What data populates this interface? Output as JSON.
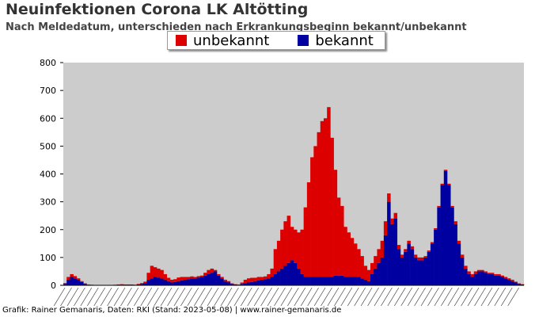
{
  "header": {
    "title": "Neuinfektionen Corona LK Altötting",
    "subtitle": "Nach Meldedatum, unterschieden nach Erkrankungsbeginn bekannt/unbekannt"
  },
  "footer": {
    "credit": "Grafik: Rainer Gemanaris, Daten: RKI (Stand: 2023-05-08) | www.rainer-gemanaris.de"
  },
  "chart_data": {
    "type": "bar",
    "stacked": true,
    "title": "Neuinfektionen Corona LK Altötting",
    "subtitle": "Nach Meldedatum, unterschieden nach Erkrankungsbeginn bekannt/unbekannt",
    "xlabel": "",
    "ylabel": "",
    "ylim": [
      0,
      800
    ],
    "yticks": [
      0,
      100,
      200,
      300,
      400,
      500,
      600,
      700,
      800
    ],
    "grid": false,
    "legend_position": "top-center",
    "x_tick_labels_legible": false,
    "series": [
      {
        "name": "bekannt",
        "color": "#0000a0",
        "values": [
          5,
          20,
          30,
          25,
          20,
          12,
          5,
          2,
          1,
          0,
          0,
          0,
          0,
          0,
          0,
          0,
          0,
          0,
          0,
          0,
          0,
          0,
          3,
          5,
          8,
          20,
          25,
          30,
          28,
          25,
          20,
          15,
          10,
          12,
          15,
          18,
          20,
          22,
          25,
          25,
          28,
          30,
          35,
          40,
          45,
          50,
          35,
          25,
          15,
          10,
          5,
          3,
          2,
          5,
          8,
          10,
          12,
          15,
          18,
          20,
          22,
          25,
          30,
          40,
          50,
          60,
          70,
          80,
          90,
          80,
          60,
          40,
          30,
          30,
          30,
          30,
          30,
          30,
          30,
          30,
          30,
          35,
          35,
          35,
          30,
          30,
          30,
          30,
          30,
          25,
          20,
          15,
          40,
          60,
          80,
          100,
          180,
          300,
          220,
          240,
          130,
          100,
          120,
          150,
          130,
          100,
          90,
          90,
          100,
          120,
          150,
          200,
          280,
          360,
          410,
          360,
          280,
          220,
          150,
          100,
          60,
          40,
          30,
          40,
          50,
          50,
          45,
          40,
          40,
          35,
          35,
          30,
          25,
          20,
          15,
          10,
          5,
          3
        ]
      },
      {
        "name": "unbekannt",
        "color": "#dd0000",
        "values": [
          3,
          10,
          10,
          8,
          5,
          3,
          2,
          1,
          1,
          0,
          0,
          0,
          0,
          0,
          1,
          2,
          3,
          4,
          3,
          3,
          3,
          2,
          2,
          3,
          5,
          25,
          45,
          35,
          32,
          30,
          20,
          12,
          10,
          10,
          13,
          12,
          10,
          8,
          7,
          5,
          5,
          5,
          10,
          15,
          15,
          5,
          5,
          5,
          5,
          5,
          2,
          1,
          1,
          5,
          12,
          15,
          15,
          12,
          12,
          10,
          10,
          15,
          30,
          90,
          110,
          140,
          160,
          170,
          120,
          120,
          130,
          160,
          250,
          340,
          430,
          470,
          520,
          560,
          570,
          610,
          500,
          380,
          280,
          250,
          180,
          160,
          140,
          120,
          100,
          80,
          50,
          40,
          40,
          45,
          50,
          60,
          50,
          30,
          20,
          20,
          15,
          10,
          10,
          10,
          10,
          10,
          10,
          10,
          5,
          5,
          5,
          5,
          5,
          5,
          5,
          5,
          5,
          10,
          10,
          10,
          10,
          10,
          10,
          10,
          5,
          5,
          5,
          5,
          5,
          5,
          5,
          5,
          5,
          5,
          5,
          3,
          2,
          1
        ]
      }
    ]
  }
}
